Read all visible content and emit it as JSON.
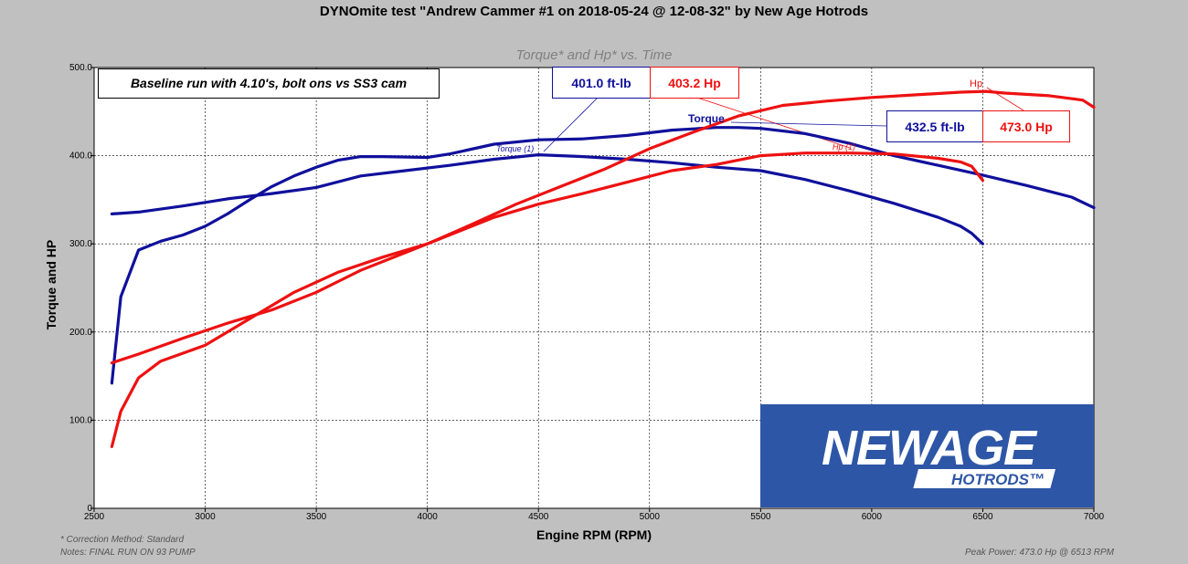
{
  "title": "DYNOmite test \"Andrew Cammer #1 on 2018-05-24 @ 12-08-32\" by New Age Hotrods",
  "subtitle": "Torque* and Hp* vs. Time",
  "annotation": "Baseline run with 4.10's, bolt ons vs SS3 cam",
  "footnotes": {
    "correction": "* Correction Method: Standard",
    "notes": "Notes: FINAL RUN ON 93 PUMP",
    "peak": "Peak Power: 473.0 Hp @ 6513 RPM"
  },
  "peak_boxes": {
    "run1_torque": "401.0 ft-lb",
    "run1_hp": "403.2 Hp",
    "run2_torque": "432.5 ft-lb",
    "run2_hp": "473.0 Hp"
  },
  "curve_labels": {
    "torque": "Torque",
    "hp": "Hp",
    "torque1": "Torque (1)",
    "hp1": "Hp (1)"
  },
  "logo": {
    "line1": "NEWAGE",
    "line2": "HOTRODS™"
  },
  "colors": {
    "background": "#c0c0c0",
    "torque": "#10109c",
    "hp": "#ee1111",
    "logo_bg": "#2e56a6"
  },
  "chart_data": {
    "type": "line",
    "xlabel": "Engine RPM (RPM)",
    "ylabel": "Torque and HP",
    "xlim": [
      2500,
      7000
    ],
    "ylim": [
      0,
      500
    ],
    "x_ticks": [
      "2500",
      "3000",
      "3500",
      "4000",
      "4500",
      "5000",
      "5500",
      "6000",
      "6500",
      "7000"
    ],
    "y_ticks": [
      "0",
      "100.0",
      "200.0",
      "300.0",
      "400.0",
      "500.0"
    ],
    "grid": true,
    "series": [
      {
        "name": "Torque",
        "color": "#10109c",
        "x": [
          2580,
          2620,
          2700,
          2800,
          2900,
          3000,
          3100,
          3200,
          3300,
          3400,
          3500,
          3600,
          3700,
          3800,
          4000,
          4100,
          4300,
          4500,
          4700,
          4900,
          5100,
          5300,
          5400,
          5500,
          5700,
          5900,
          6100,
          6300,
          6500,
          6700,
          6900,
          7000
        ],
        "y": [
          142,
          240,
          293,
          303,
          310,
          320,
          334,
          350,
          365,
          377,
          387,
          395,
          399,
          399,
          398,
          402,
          413,
          418,
          419,
          423,
          429,
          432,
          432,
          431,
          425,
          414,
          400,
          389,
          378,
          366,
          353,
          341
        ]
      },
      {
        "name": "Torque (1)",
        "color": "#10109c",
        "x": [
          2580,
          2700,
          2900,
          3100,
          3300,
          3500,
          3700,
          3900,
          4100,
          4300,
          4500,
          4700,
          4900,
          5100,
          5300,
          5500,
          5700,
          5900,
          6100,
          6300,
          6400,
          6450,
          6500
        ],
        "y": [
          334,
          336,
          343,
          351,
          357,
          364,
          377,
          383,
          389,
          396,
          401,
          399,
          396,
          392,
          387,
          383,
          373,
          360,
          346,
          330,
          320,
          312,
          300
        ]
      },
      {
        "name": "Hp",
        "color": "#ee1111",
        "x": [
          2580,
          2620,
          2700,
          2800,
          3000,
          3200,
          3400,
          3600,
          3800,
          4000,
          4200,
          4400,
          4600,
          4800,
          5000,
          5200,
          5400,
          5600,
          5800,
          6000,
          6200,
          6400,
          6513,
          6600,
          6800,
          6950,
          7000
        ],
        "y": [
          70,
          110,
          148,
          167,
          185,
          215,
          245,
          268,
          285,
          300,
          322,
          345,
          365,
          385,
          408,
          427,
          445,
          457,
          462,
          466,
          469,
          472,
          473,
          471,
          468,
          463,
          455
        ]
      },
      {
        "name": "Hp (1)",
        "color": "#ee1111",
        "x": [
          2580,
          2700,
          2900,
          3100,
          3300,
          3500,
          3700,
          3900,
          4100,
          4300,
          4500,
          4700,
          4900,
          5100,
          5300,
          5500,
          5700,
          5900,
          6100,
          6300,
          6400,
          6450,
          6500
        ],
        "y": [
          165,
          175,
          193,
          210,
          225,
          245,
          270,
          290,
          310,
          330,
          345,
          357,
          370,
          383,
          390,
          400,
          403,
          403,
          402,
          397,
          393,
          388,
          372
        ]
      }
    ]
  }
}
